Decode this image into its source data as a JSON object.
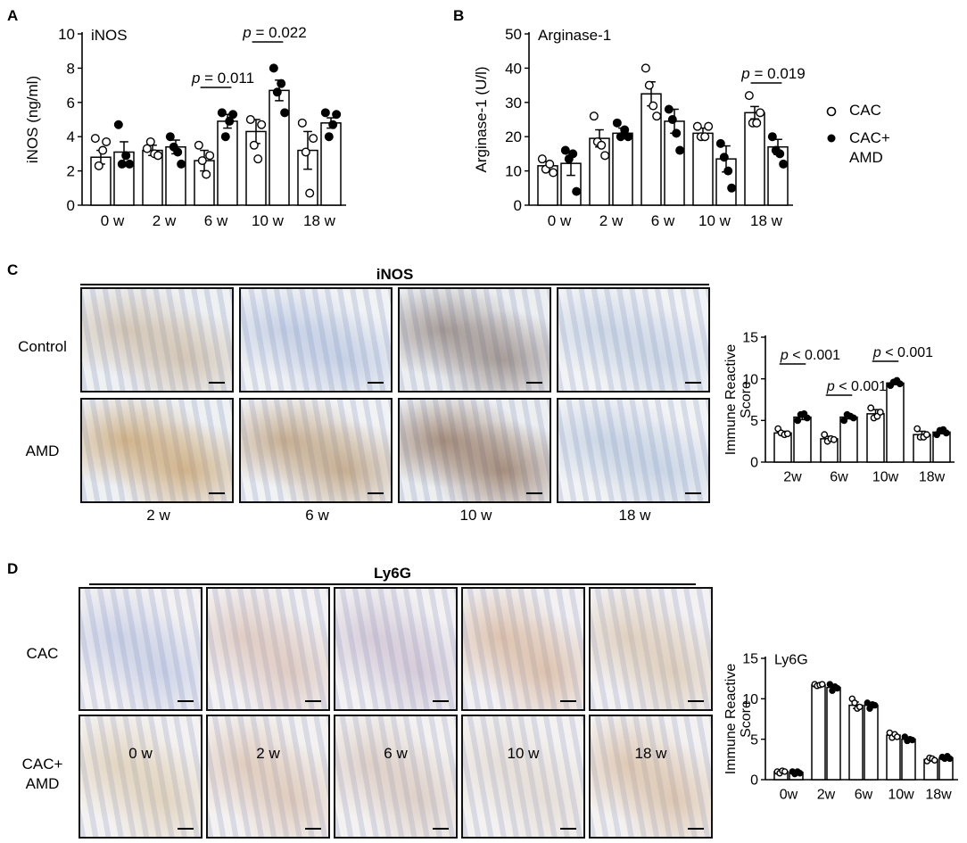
{
  "panels": {
    "A": "A",
    "B": "B",
    "C": "C",
    "D": "D"
  },
  "legend": [
    {
      "label": "CAC",
      "fill": "#ffffff"
    },
    {
      "label_lines": [
        "CAC+",
        "AMD"
      ],
      "fill": "#000000"
    }
  ],
  "panelC": {
    "title": "iNOS",
    "row_labels": [
      "Control",
      "AMD"
    ],
    "col_labels": [
      "2 w",
      "6 w",
      "10 w",
      "18 w"
    ]
  },
  "panelD": {
    "title": "Ly6G",
    "row_labels": [
      [
        "CAC"
      ],
      [
        "CAC+",
        "AMD"
      ]
    ],
    "tile_labels": [
      "0 w",
      "2 w",
      "6 w",
      "10 w",
      "18 w"
    ]
  },
  "chart_data": [
    {
      "id": "A",
      "type": "bar",
      "title": "iNOS",
      "ylabel": "iNOS (ng/ml)",
      "ylim": [
        0,
        10
      ],
      "yticks": [
        0,
        2,
        4,
        6,
        8,
        10
      ],
      "categories": [
        "0 w",
        "2 w",
        "6 w",
        "10 w",
        "18 w"
      ],
      "series": [
        {
          "name": "CAC",
          "values": [
            2.8,
            3.2,
            2.6,
            4.3,
            3.2
          ],
          "sem": [
            0.4,
            0.3,
            0.6,
            0.7,
            1.1
          ],
          "points": [
            [
              3.9,
              2.3,
              3.2,
              3.7
            ],
            [
              3.3,
              3.7,
              3.0,
              2.9
            ],
            [
              3.5,
              2.6,
              1.8,
              2.9
            ],
            [
              5.0,
              3.5,
              2.7,
              4.7
            ],
            [
              4.8,
              3.1,
              0.7,
              3.9
            ]
          ]
        },
        {
          "name": "CAC+ AMD",
          "values": [
            3.1,
            3.4,
            4.9,
            6.7,
            4.8
          ],
          "sem": [
            0.6,
            0.4,
            0.4,
            0.6,
            0.3
          ],
          "points": [
            [
              4.7,
              2.4,
              2.9,
              2.4
            ],
            [
              4.0,
              3.4,
              3.1,
              2.4
            ],
            [
              5.4,
              4.0,
              4.9,
              5.3
            ],
            [
              8.0,
              6.6,
              7.1,
              5.4
            ],
            [
              5.4,
              4.0,
              4.7,
              5.3
            ]
          ]
        }
      ],
      "annotations": [
        {
          "prefix": "p",
          "value": "= 0.011",
          "between": [
            2,
            2
          ]
        },
        {
          "prefix": "p",
          "value": "= 0.022",
          "between": [
            3,
            3
          ]
        }
      ]
    },
    {
      "id": "B",
      "type": "bar",
      "title": "Arginase-1",
      "ylabel": "Arginase-1 (U/l)",
      "ylim": [
        0,
        50
      ],
      "yticks": [
        0,
        10,
        20,
        30,
        40,
        50
      ],
      "categories": [
        "0 w",
        "2 w",
        "6 w",
        "10 w",
        "18 w"
      ],
      "series": [
        {
          "name": "CAC",
          "values": [
            11.5,
            19.5,
            32.5,
            21,
            27
          ],
          "sem": [
            1.2,
            2.5,
            3.5,
            1.5,
            1.8
          ],
          "points": [
            [
              13.5,
              10.5,
              12,
              9.5
            ],
            [
              26,
              18.5,
              17.5,
              14.5
            ],
            [
              40,
              35,
              29,
              26
            ],
            [
              23,
              20,
              20,
              23
            ],
            [
              32,
              24,
              24,
              27
            ]
          ]
        },
        {
          "name": "CAC+ AMD",
          "values": [
            12.2,
            21,
            24.5,
            13.5,
            17
          ],
          "sem": [
            3.5,
            1.5,
            3.5,
            3.8,
            2.2
          ],
          "points": [
            [
              16,
              13.5,
              15,
              4
            ],
            [
              24,
              20,
              22,
              20
            ],
            [
              28,
              25,
              21,
              16
            ],
            [
              18,
              14,
              10,
              5
            ],
            [
              20,
              16,
              15,
              12
            ]
          ]
        }
      ],
      "annotations": [
        {
          "prefix": "p",
          "value": "= 0.019",
          "between": [
            4,
            4
          ]
        }
      ]
    },
    {
      "id": "C-chart",
      "type": "bar",
      "title": "",
      "ylabel": "Immune Reactive Score",
      "ylim": [
        0,
        15
      ],
      "yticks": [
        0,
        5,
        10,
        15
      ],
      "categories": [
        "2w",
        "6w",
        "10w",
        "18w"
      ],
      "series": [
        {
          "name": "CAC",
          "values": [
            3.5,
            2.8,
            5.8,
            3.3
          ],
          "sem": [
            0.2,
            0.3,
            0.5,
            0.4
          ],
          "points": [
            [
              4.0,
              3.5,
              3.3,
              3.4
            ],
            [
              3.3,
              2.5,
              2.8,
              2.7
            ],
            [
              6.5,
              5.3,
              5.5,
              6.0
            ],
            [
              4.0,
              3.0,
              3.0,
              3.3
            ]
          ]
        },
        {
          "name": "CAC+ AMD",
          "values": [
            5.4,
            5.4,
            9.5,
            3.6
          ],
          "sem": [
            0.3,
            0.2,
            0.2,
            0.2
          ],
          "points": [
            [
              5.0,
              5.7,
              5.8,
              5.3
            ],
            [
              5.0,
              5.7,
              5.5,
              5.3
            ],
            [
              9.2,
              9.6,
              9.8,
              9.4
            ],
            [
              3.3,
              3.8,
              3.9,
              3.5
            ]
          ]
        }
      ],
      "annotations": [
        {
          "prefix": "p",
          "value": "< 0.001",
          "between": [
            0,
            0
          ]
        },
        {
          "prefix": "p",
          "value": "< 0.001",
          "between": [
            1,
            1
          ]
        },
        {
          "prefix": "p",
          "value": "< 0.001",
          "between": [
            2,
            2
          ]
        }
      ]
    },
    {
      "id": "D-chart",
      "type": "bar",
      "title": "Ly6G",
      "ylabel": "Immune Reactive Score",
      "ylim": [
        0,
        15
      ],
      "yticks": [
        0,
        5,
        10,
        15
      ],
      "categories": [
        "0w",
        "2w",
        "6w",
        "10w",
        "18w"
      ],
      "series": [
        {
          "name": "CAC",
          "values": [
            1.0,
            11.7,
            9.2,
            5.5,
            2.5
          ],
          "sem": [
            0.1,
            0.2,
            0.4,
            0.3,
            0.2
          ],
          "points": [
            [
              1.0,
              0.8,
              1.1,
              1.0
            ],
            [
              11.8,
              11.6,
              11.7,
              11.8
            ],
            [
              10.0,
              9.5,
              8.8,
              9.0
            ],
            [
              5.8,
              5.2,
              5.6,
              5.3
            ],
            [
              2.3,
              2.7,
              2.6,
              2.4
            ]
          ]
        },
        {
          "name": "CAC+ AMD",
          "values": [
            0.9,
            11.4,
            9.2,
            5.0,
            2.7
          ],
          "sem": [
            0.1,
            0.3,
            0.3,
            0.2,
            0.1
          ],
          "points": [
            [
              1.0,
              0.7,
              1.0,
              0.8
            ],
            [
              11.8,
              11.0,
              11.5,
              11.3
            ],
            [
              9.5,
              8.8,
              9.3,
              9.2
            ],
            [
              5.3,
              4.8,
              5.0,
              4.9
            ],
            [
              2.8,
              2.6,
              2.9,
              2.6
            ]
          ]
        }
      ],
      "annotations": []
    }
  ]
}
